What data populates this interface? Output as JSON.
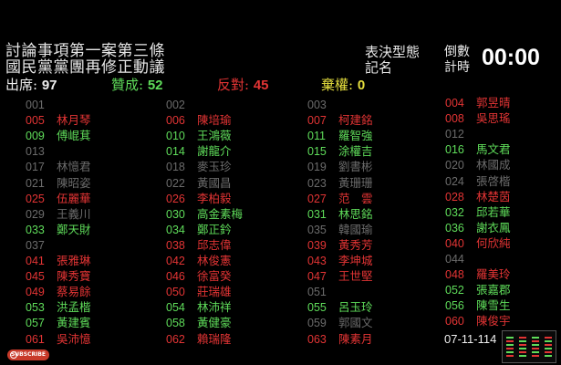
{
  "header": {
    "title_line1": "討論事項第一案第三條",
    "title_line2": "國民黨黨團再修正動議",
    "vote_type_label": "表決型態",
    "vote_type_value": "記名",
    "countdown_label1": "倒數",
    "countdown_label2": "計時",
    "timer": "00:00"
  },
  "stats": {
    "present_label": "出席:",
    "present": "97",
    "yes_label": "贊成:",
    "yes": "52",
    "no_label": "反對:",
    "no": "45",
    "abstain_label": "棄權:",
    "abstain": "0"
  },
  "colors": {
    "yes": "#5fdc5a",
    "no": "#e23434",
    "absent": "#6b6b6b",
    "abstain": "#e6df3e"
  },
  "columns": [
    [
      {
        "n": "001",
        "name": "",
        "s": "gray"
      },
      {
        "n": "005",
        "name": "林月琴",
        "s": "red"
      },
      {
        "n": "009",
        "name": "傅崐萁",
        "s": "green"
      },
      {
        "n": "013",
        "name": "",
        "s": "gray"
      },
      {
        "n": "017",
        "name": "林憶君",
        "s": "gray"
      },
      {
        "n": "021",
        "name": "陳昭姿",
        "s": "gray"
      },
      {
        "n": "025",
        "name": "伍麗華",
        "s": "red"
      },
      {
        "n": "029",
        "name": "王義川",
        "s": "gray"
      },
      {
        "n": "033",
        "name": "鄭天財",
        "s": "green"
      },
      {
        "n": "037",
        "name": "",
        "s": "gray"
      },
      {
        "n": "041",
        "name": "張雅琳",
        "s": "red"
      },
      {
        "n": "045",
        "name": "陳秀寶",
        "s": "red"
      },
      {
        "n": "049",
        "name": "蔡易餘",
        "s": "red"
      },
      {
        "n": "053",
        "name": "洪孟楷",
        "s": "green"
      },
      {
        "n": "057",
        "name": "黃建賓",
        "s": "green"
      },
      {
        "n": "061",
        "name": "吳沛憶",
        "s": "red"
      }
    ],
    [
      {
        "n": "002",
        "name": "",
        "s": "gray"
      },
      {
        "n": "006",
        "name": "陳培瑜",
        "s": "red"
      },
      {
        "n": "010",
        "name": "王鴻薇",
        "s": "green"
      },
      {
        "n": "014",
        "name": "謝龍介",
        "s": "green"
      },
      {
        "n": "018",
        "name": "麥玉珍",
        "s": "gray"
      },
      {
        "n": "022",
        "name": "黃國昌",
        "s": "gray"
      },
      {
        "n": "026",
        "name": "李柏毅",
        "s": "red"
      },
      {
        "n": "030",
        "name": "高金素梅",
        "s": "green"
      },
      {
        "n": "034",
        "name": "鄭正鈐",
        "s": "green"
      },
      {
        "n": "038",
        "name": "邱志偉",
        "s": "red"
      },
      {
        "n": "042",
        "name": "林俊憲",
        "s": "red"
      },
      {
        "n": "046",
        "name": "徐富癸",
        "s": "red"
      },
      {
        "n": "050",
        "name": "莊瑞雄",
        "s": "red"
      },
      {
        "n": "054",
        "name": "林沛祥",
        "s": "green"
      },
      {
        "n": "058",
        "name": "黃健豪",
        "s": "green"
      },
      {
        "n": "062",
        "name": "賴瑞隆",
        "s": "red"
      }
    ],
    [
      {
        "n": "003",
        "name": "",
        "s": "gray"
      },
      {
        "n": "007",
        "name": "柯建銘",
        "s": "red"
      },
      {
        "n": "011",
        "name": "羅智強",
        "s": "green"
      },
      {
        "n": "015",
        "name": "涂權吉",
        "s": "green"
      },
      {
        "n": "019",
        "name": "劉書彬",
        "s": "gray"
      },
      {
        "n": "023",
        "name": "黃珊珊",
        "s": "gray"
      },
      {
        "n": "027",
        "name": "范　雲",
        "s": "red"
      },
      {
        "n": "031",
        "name": "林思銘",
        "s": "green"
      },
      {
        "n": "035",
        "name": "韓國瑜",
        "s": "gray"
      },
      {
        "n": "039",
        "name": "黃秀芳",
        "s": "red"
      },
      {
        "n": "043",
        "name": "李坤城",
        "s": "red"
      },
      {
        "n": "047",
        "name": "王世堅",
        "s": "red"
      },
      {
        "n": "051",
        "name": "",
        "s": "gray"
      },
      {
        "n": "055",
        "name": "呂玉玲",
        "s": "green"
      },
      {
        "n": "059",
        "name": "郭國文",
        "s": "gray"
      },
      {
        "n": "063",
        "name": "陳素月",
        "s": "red"
      }
    ],
    [
      {
        "n": "004",
        "name": "郭昱晴",
        "s": "red"
      },
      {
        "n": "008",
        "name": "吳思瑤",
        "s": "red"
      },
      {
        "n": "012",
        "name": "",
        "s": "gray"
      },
      {
        "n": "016",
        "name": "馬文君",
        "s": "green"
      },
      {
        "n": "020",
        "name": "林國成",
        "s": "gray"
      },
      {
        "n": "024",
        "name": "張啓楷",
        "s": "gray"
      },
      {
        "n": "028",
        "name": "林楚茵",
        "s": "red"
      },
      {
        "n": "032",
        "name": "邱若華",
        "s": "green"
      },
      {
        "n": "036",
        "name": "謝衣鳳",
        "s": "green"
      },
      {
        "n": "040",
        "name": "何欣純",
        "s": "red"
      },
      {
        "n": "044",
        "name": "",
        "s": "gray"
      },
      {
        "n": "048",
        "name": "羅美玲",
        "s": "red"
      },
      {
        "n": "052",
        "name": "張嘉郡",
        "s": "green"
      },
      {
        "n": "056",
        "name": "陳雪生",
        "s": "green"
      },
      {
        "n": "060",
        "name": "陳俊宇",
        "s": "red"
      }
    ]
  ],
  "overlay": {
    "subscribe_label": "SUBSCRIBE",
    "date": "07-11-114"
  }
}
